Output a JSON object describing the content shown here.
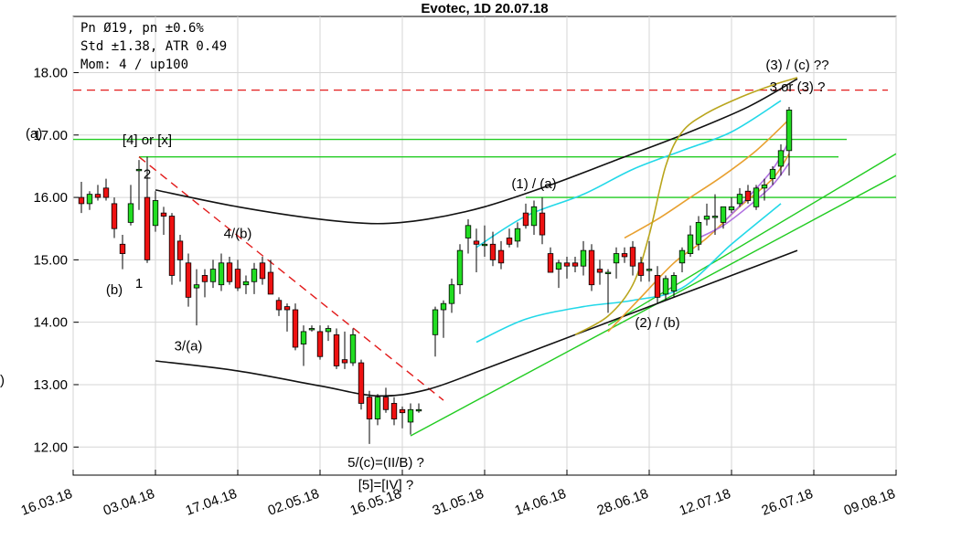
{
  "chart_data": {
    "type": "candlestick",
    "title": "Evotec, 1D 20.07.18",
    "info_lines": [
      "Pn  Ø19, pn ±0.6%",
      "Std ±1.38, ATR 0.49",
      "Mom: 4 / up100"
    ],
    "y_ticks": [
      "12.00",
      "13.00",
      "14.00",
      "15.00",
      "16.00",
      "17.00",
      "18.00"
    ],
    "ylim": [
      11.55,
      18.9
    ],
    "x_ticks": [
      "16.03.18",
      "03.04.18",
      "17.04.18",
      "02.05.18",
      "16.05.18",
      "31.05.18",
      "14.06.18",
      "28.06.18",
      "12.07.18",
      "26.07.18",
      "09.08.18"
    ],
    "xlim_day": [
      -10,
      90
    ],
    "left_margin_labels": {
      "top": "(a)",
      "mid": ")"
    },
    "candles": [
      {
        "day": -9,
        "o": 16.0,
        "h": 16.25,
        "l": 15.75,
        "c": 15.9
      },
      {
        "day": -8,
        "o": 15.9,
        "h": 16.1,
        "l": 15.8,
        "c": 16.05
      },
      {
        "day": -7,
        "o": 16.05,
        "h": 16.2,
        "l": 15.95,
        "c": 16.0
      },
      {
        "day": -6,
        "o": 16.15,
        "h": 16.3,
        "l": 15.95,
        "c": 16.0
      },
      {
        "day": -5,
        "o": 15.9,
        "h": 16.0,
        "l": 15.35,
        "c": 15.5
      },
      {
        "day": -4,
        "o": 15.25,
        "h": 15.4,
        "l": 14.85,
        "c": 15.1
      },
      {
        "day": -3,
        "o": 15.6,
        "h": 16.2,
        "l": 15.55,
        "c": 15.9
      },
      {
        "day": -2,
        "o": 16.45,
        "h": 16.6,
        "l": 15.8,
        "c": 16.45
      },
      {
        "day": -1,
        "o": 16.0,
        "h": 16.65,
        "l": 14.95,
        "c": 15.0
      },
      {
        "day": 0,
        "o": 15.55,
        "h": 16.1,
        "l": 15.45,
        "c": 15.95
      },
      {
        "day": 1,
        "o": 15.75,
        "h": 15.85,
        "l": 15.4,
        "c": 15.7
      },
      {
        "day": 2,
        "o": 15.7,
        "h": 15.75,
        "l": 14.6,
        "c": 14.75
      },
      {
        "day": 3,
        "o": 15.3,
        "h": 15.4,
        "l": 14.65,
        "c": 15.0
      },
      {
        "day": 4,
        "o": 14.95,
        "h": 15.1,
        "l": 14.25,
        "c": 14.4
      },
      {
        "day": 5,
        "o": 14.55,
        "h": 14.85,
        "l": 13.95,
        "c": 14.6
      },
      {
        "day": 6,
        "o": 14.75,
        "h": 14.85,
        "l": 14.4,
        "c": 14.65
      },
      {
        "day": 7,
        "o": 14.65,
        "h": 15.0,
        "l": 14.55,
        "c": 14.85
      },
      {
        "day": 8,
        "o": 14.6,
        "h": 15.1,
        "l": 14.5,
        "c": 14.95
      },
      {
        "day": 9,
        "o": 14.95,
        "h": 15.05,
        "l": 14.6,
        "c": 14.65
      },
      {
        "day": 10,
        "o": 14.85,
        "h": 15.0,
        "l": 14.5,
        "c": 14.55
      },
      {
        "day": 11,
        "o": 14.6,
        "h": 14.75,
        "l": 14.45,
        "c": 14.65
      },
      {
        "day": 12,
        "o": 14.65,
        "h": 14.95,
        "l": 14.45,
        "c": 14.85
      },
      {
        "day": 13,
        "o": 14.95,
        "h": 15.05,
        "l": 14.6,
        "c": 14.7
      },
      {
        "day": 14,
        "o": 14.8,
        "h": 15.0,
        "l": 14.45,
        "c": 14.45
      },
      {
        "day": 15,
        "o": 14.35,
        "h": 14.4,
        "l": 14.1,
        "c": 14.2
      },
      {
        "day": 16,
        "o": 14.25,
        "h": 14.3,
        "l": 13.85,
        "c": 14.2
      },
      {
        "day": 17,
        "o": 14.2,
        "h": 14.3,
        "l": 13.55,
        "c": 13.6
      },
      {
        "day": 18,
        "o": 13.65,
        "h": 13.95,
        "l": 13.3,
        "c": 13.85
      },
      {
        "day": 19,
        "o": 13.9,
        "h": 13.95,
        "l": 13.85,
        "c": 13.9
      },
      {
        "day": 20,
        "o": 13.85,
        "h": 13.95,
        "l": 13.4,
        "c": 13.45
      },
      {
        "day": 21,
        "o": 13.85,
        "h": 13.95,
        "l": 13.7,
        "c": 13.9
      },
      {
        "day": 22,
        "o": 13.8,
        "h": 13.9,
        "l": 13.25,
        "c": 13.3
      },
      {
        "day": 23,
        "o": 13.4,
        "h": 13.85,
        "l": 13.25,
        "c": 13.35
      },
      {
        "day": 24,
        "o": 13.35,
        "h": 13.9,
        "l": 13.3,
        "c": 13.8
      },
      {
        "day": 25,
        "o": 13.35,
        "h": 13.4,
        "l": 12.6,
        "c": 12.7
      },
      {
        "day": 26,
        "o": 12.8,
        "h": 12.9,
        "l": 12.05,
        "c": 12.45
      },
      {
        "day": 27,
        "o": 12.45,
        "h": 12.85,
        "l": 12.35,
        "c": 12.8
      },
      {
        "day": 28,
        "o": 12.8,
        "h": 12.95,
        "l": 12.55,
        "c": 12.6
      },
      {
        "day": 29,
        "o": 12.7,
        "h": 12.8,
        "l": 12.35,
        "c": 12.45
      },
      {
        "day": 30,
        "o": 12.6,
        "h": 12.65,
        "l": 12.3,
        "c": 12.55
      },
      {
        "day": 31,
        "o": 12.4,
        "h": 12.7,
        "l": 12.2,
        "c": 12.6
      },
      {
        "day": 32,
        "o": 12.6,
        "h": 12.7,
        "l": 12.55,
        "c": 12.6
      },
      {
        "day": 34,
        "o": 13.8,
        "h": 14.25,
        "l": 13.45,
        "c": 14.2
      },
      {
        "day": 35,
        "o": 14.2,
        "h": 14.35,
        "l": 13.75,
        "c": 14.3
      },
      {
        "day": 36,
        "o": 14.3,
        "h": 14.7,
        "l": 14.15,
        "c": 14.6
      },
      {
        "day": 37,
        "o": 14.6,
        "h": 15.25,
        "l": 14.45,
        "c": 15.15
      },
      {
        "day": 38,
        "o": 15.35,
        "h": 15.65,
        "l": 15.1,
        "c": 15.55
      },
      {
        "day": 39,
        "o": 15.3,
        "h": 15.5,
        "l": 14.8,
        "c": 15.25
      },
      {
        "day": 40,
        "o": 15.25,
        "h": 15.55,
        "l": 15.05,
        "c": 15.25
      },
      {
        "day": 41,
        "o": 15.25,
        "h": 15.45,
        "l": 14.9,
        "c": 15.0
      },
      {
        "day": 42,
        "o": 15.15,
        "h": 15.3,
        "l": 14.85,
        "c": 14.95
      },
      {
        "day": 43,
        "o": 15.35,
        "h": 15.5,
        "l": 15.2,
        "c": 15.25
      },
      {
        "day": 44,
        "o": 15.3,
        "h": 15.6,
        "l": 15.2,
        "c": 15.5
      },
      {
        "day": 45,
        "o": 15.75,
        "h": 15.9,
        "l": 15.5,
        "c": 15.55
      },
      {
        "day": 46,
        "o": 15.55,
        "h": 15.95,
        "l": 15.4,
        "c": 15.85
      },
      {
        "day": 47,
        "o": 15.75,
        "h": 16.0,
        "l": 15.25,
        "c": 15.4
      },
      {
        "day": 48,
        "o": 15.1,
        "h": 15.2,
        "l": 14.8,
        "c": 14.8
      },
      {
        "day": 49,
        "o": 14.85,
        "h": 15.0,
        "l": 14.55,
        "c": 14.95
      },
      {
        "day": 50,
        "o": 14.95,
        "h": 15.05,
        "l": 14.7,
        "c": 14.9
      },
      {
        "day": 51,
        "o": 14.95,
        "h": 15.05,
        "l": 14.8,
        "c": 14.9
      },
      {
        "day": 52,
        "o": 14.9,
        "h": 15.3,
        "l": 14.75,
        "c": 15.15
      },
      {
        "day": 53,
        "o": 15.15,
        "h": 15.25,
        "l": 14.5,
        "c": 14.6
      },
      {
        "day": 54,
        "o": 14.85,
        "h": 15.0,
        "l": 14.6,
        "c": 14.8
      },
      {
        "day": 55,
        "o": 14.8,
        "h": 14.85,
        "l": 14.15,
        "c": 14.8
      },
      {
        "day": 56,
        "o": 14.95,
        "h": 15.2,
        "l": 14.7,
        "c": 15.1
      },
      {
        "day": 57,
        "o": 15.1,
        "h": 15.2,
        "l": 14.95,
        "c": 15.05
      },
      {
        "day": 58,
        "o": 15.2,
        "h": 15.3,
        "l": 14.75,
        "c": 14.9
      },
      {
        "day": 59,
        "o": 14.95,
        "h": 15.05,
        "l": 14.65,
        "c": 14.75
      },
      {
        "day": 60,
        "o": 14.85,
        "h": 15.3,
        "l": 14.65,
        "c": 14.85
      },
      {
        "day": 61,
        "o": 14.75,
        "h": 14.9,
        "l": 14.3,
        "c": 14.4
      },
      {
        "day": 62,
        "o": 14.45,
        "h": 14.75,
        "l": 14.35,
        "c": 14.7
      },
      {
        "day": 63,
        "o": 14.5,
        "h": 14.8,
        "l": 14.4,
        "c": 14.75
      },
      {
        "day": 64,
        "o": 14.95,
        "h": 15.2,
        "l": 14.8,
        "c": 15.15
      },
      {
        "day": 65,
        "o": 15.1,
        "h": 15.55,
        "l": 15.05,
        "c": 15.4
      },
      {
        "day": 66,
        "o": 15.25,
        "h": 15.7,
        "l": 15.15,
        "c": 15.6
      },
      {
        "day": 67,
        "o": 15.65,
        "h": 15.9,
        "l": 15.55,
        "c": 15.7
      },
      {
        "day": 68,
        "o": 15.7,
        "h": 16.05,
        "l": 15.4,
        "c": 15.7
      },
      {
        "day": 69,
        "o": 15.6,
        "h": 15.85,
        "l": 15.5,
        "c": 15.85
      },
      {
        "day": 70,
        "o": 15.8,
        "h": 16.0,
        "l": 15.75,
        "c": 15.85
      },
      {
        "day": 71,
        "o": 15.9,
        "h": 16.15,
        "l": 15.85,
        "c": 16.05
      },
      {
        "day": 72,
        "o": 16.1,
        "h": 16.2,
        "l": 15.9,
        "c": 15.95
      },
      {
        "day": 73,
        "o": 15.85,
        "h": 16.2,
        "l": 15.8,
        "c": 16.15
      },
      {
        "day": 74,
        "o": 16.15,
        "h": 16.3,
        "l": 15.95,
        "c": 16.2
      },
      {
        "day": 75,
        "o": 16.3,
        "h": 16.5,
        "l": 16.2,
        "c": 16.45
      },
      {
        "day": 76,
        "o": 16.5,
        "h": 16.85,
        "l": 16.35,
        "c": 16.75
      },
      {
        "day": 77,
        "o": 16.75,
        "h": 17.45,
        "l": 16.35,
        "c": 17.4
      }
    ],
    "horizontal_lines": [
      {
        "y": 17.72,
        "color": "#e21b1b",
        "style": "dashed",
        "x_from": -10,
        "x_to": 89
      },
      {
        "y": 16.93,
        "color": "#22cc22",
        "style": "solid",
        "x_from": -10,
        "x_to": 84
      },
      {
        "y": 16.65,
        "color": "#22cc22",
        "style": "solid",
        "x_from": -2,
        "x_to": 83
      },
      {
        "y": 16.0,
        "color": "#22cc22",
        "style": "solid",
        "x_from": 45,
        "x_to": 90
      }
    ],
    "trend_lines": [
      {
        "points": [
          [
            -2,
            16.65
          ],
          [
            35,
            12.75
          ]
        ],
        "color": "#e21b1b",
        "style": "dashed"
      },
      {
        "points": [
          [
            31,
            12.18
          ],
          [
            90,
            16.35
          ]
        ],
        "color": "#22cc22",
        "style": "solid"
      },
      {
        "points": [
          [
            55,
            13.95
          ],
          [
            90,
            16.7
          ]
        ],
        "color": "#22cc22",
        "style": "solid"
      }
    ],
    "curves": [
      {
        "color": "#111111",
        "points": [
          [
            0,
            16.12
          ],
          [
            10,
            15.85
          ],
          [
            20,
            15.65
          ],
          [
            27,
            15.58
          ],
          [
            33,
            15.65
          ],
          [
            40,
            15.85
          ],
          [
            48,
            16.2
          ],
          [
            56,
            16.6
          ],
          [
            64,
            17.0
          ],
          [
            72,
            17.45
          ],
          [
            78,
            17.9
          ]
        ]
      },
      {
        "color": "#111111",
        "points": [
          [
            0,
            13.38
          ],
          [
            10,
            13.22
          ],
          [
            20,
            12.98
          ],
          [
            27,
            12.82
          ],
          [
            33,
            12.92
          ],
          [
            40,
            13.25
          ],
          [
            48,
            13.65
          ],
          [
            56,
            14.05
          ],
          [
            64,
            14.45
          ],
          [
            72,
            14.85
          ],
          [
            78,
            15.15
          ]
        ]
      },
      {
        "color": "#22d8e8",
        "points": [
          [
            39,
            15.2
          ],
          [
            45,
            15.7
          ],
          [
            52,
            16.05
          ],
          [
            58,
            16.45
          ],
          [
            64,
            16.75
          ],
          [
            70,
            17.05
          ],
          [
            76,
            17.55
          ]
        ]
      },
      {
        "color": "#22d8e8",
        "points": [
          [
            39,
            13.68
          ],
          [
            45,
            14.05
          ],
          [
            52,
            14.25
          ],
          [
            58,
            14.35
          ],
          [
            64,
            14.55
          ],
          [
            70,
            15.25
          ],
          [
            76,
            15.9
          ]
        ]
      },
      {
        "color": "#e8a030",
        "points": [
          [
            55,
            13.85
          ],
          [
            59,
            14.4
          ],
          [
            63,
            14.95
          ],
          [
            67,
            15.35
          ],
          [
            71,
            15.85
          ],
          [
            75,
            16.3
          ],
          [
            77,
            16.7
          ]
        ]
      },
      {
        "color": "#e8a030",
        "points": [
          [
            57,
            15.35
          ],
          [
            61,
            15.65
          ],
          [
            65,
            16.0
          ],
          [
            69,
            16.35
          ],
          [
            73,
            16.75
          ],
          [
            77,
            17.25
          ]
        ]
      },
      {
        "color": "#b9a51c",
        "points": [
          [
            51,
            13.8
          ],
          [
            55,
            14.1
          ],
          [
            58,
            14.6
          ],
          [
            60,
            15.4
          ],
          [
            62,
            16.5
          ],
          [
            64,
            17.05
          ],
          [
            67,
            17.35
          ],
          [
            71,
            17.6
          ],
          [
            75,
            17.8
          ],
          [
            78,
            17.92
          ]
        ]
      },
      {
        "color": "#b070e0",
        "points": [
          [
            69,
            15.6
          ],
          [
            72,
            16.0
          ],
          [
            75,
            16.45
          ],
          [
            77,
            16.9
          ]
        ]
      },
      {
        "color": "#b070e0",
        "points": [
          [
            66,
            15.35
          ],
          [
            69,
            15.55
          ],
          [
            72,
            15.85
          ],
          [
            75,
            16.2
          ],
          [
            77,
            16.55
          ]
        ]
      }
    ],
    "annotations": [
      {
        "text": "[4] or [x]",
        "day": -1,
        "y": 16.85,
        "anchor": "middle"
      },
      {
        "text": "2",
        "day": -1,
        "y": 16.3,
        "anchor": "middle"
      },
      {
        "text": "(b)",
        "day": -5,
        "y": 14.45,
        "anchor": "middle"
      },
      {
        "text": "1",
        "day": -2,
        "y": 14.55,
        "anchor": "middle"
      },
      {
        "text": "4/(b)",
        "day": 10,
        "y": 15.35,
        "anchor": "middle"
      },
      {
        "text": "3/(a)",
        "day": 4,
        "y": 13.55,
        "anchor": "middle"
      },
      {
        "text": "5/(c)=(II/B) ?",
        "day": 28,
        "y": 11.68,
        "anchor": "middle"
      },
      {
        "text": "[5]=[IV] ?",
        "day": 28,
        "y": 11.32,
        "anchor": "middle"
      },
      {
        "text": "(1) / (a)",
        "day": 46,
        "y": 16.15,
        "anchor": "middle"
      },
      {
        "text": "(2) / (b)",
        "day": 61,
        "y": 13.92,
        "anchor": "middle"
      },
      {
        "text": "(3) / (c) ??",
        "day": 78,
        "y": 18.05,
        "anchor": "middle"
      },
      {
        "text": "3 or (3) ?",
        "day": 78,
        "y": 17.7,
        "anchor": "middle"
      }
    ]
  }
}
